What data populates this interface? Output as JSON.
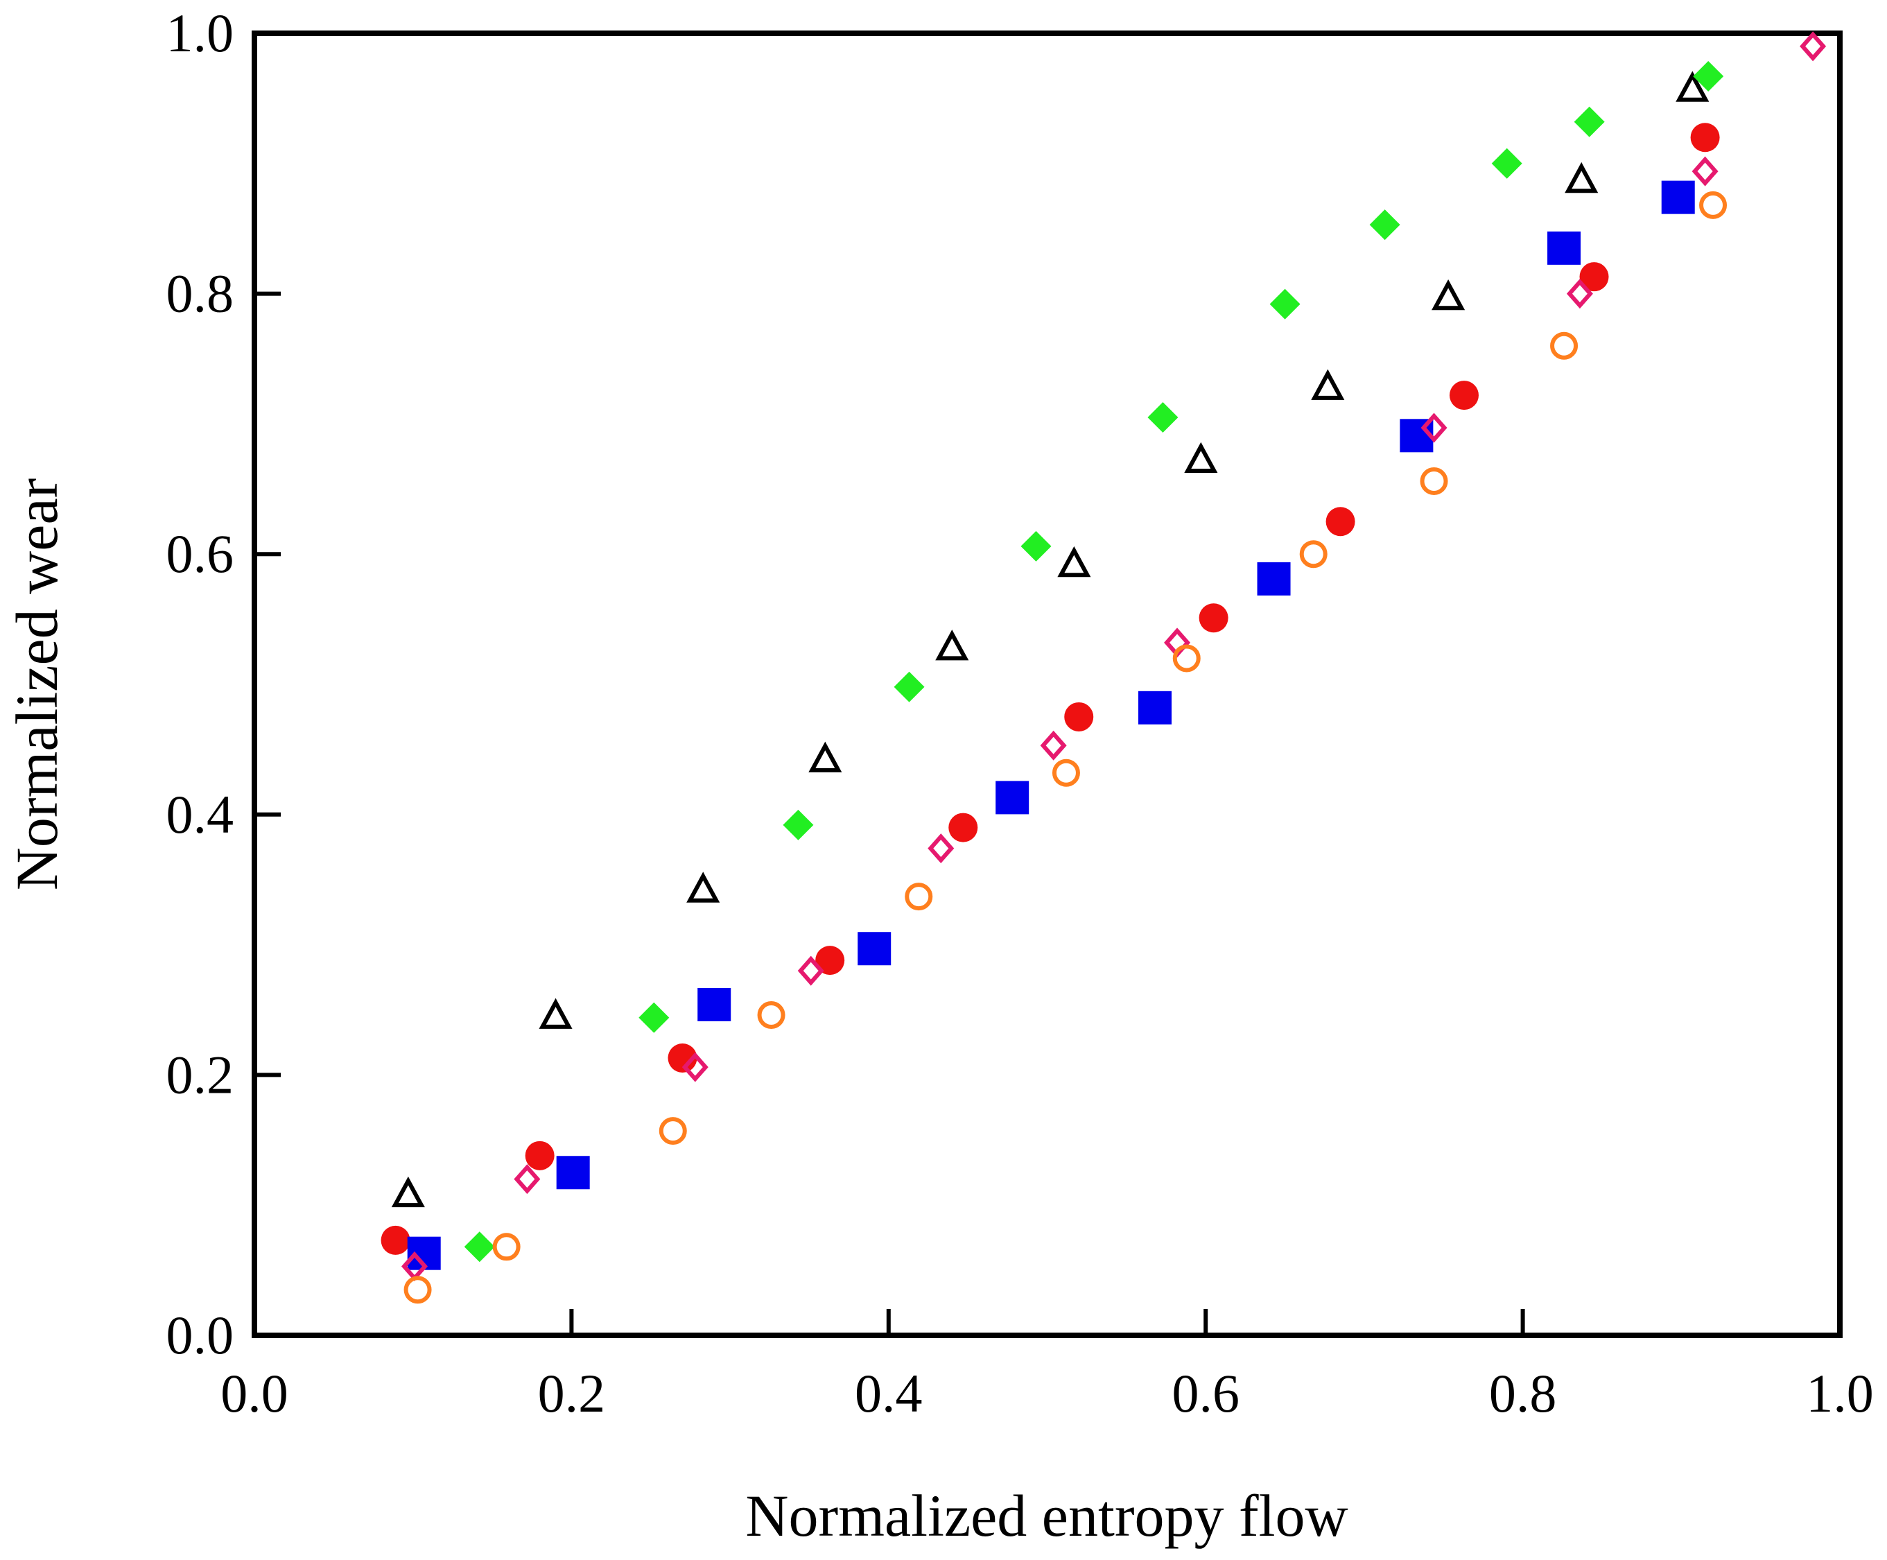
{
  "chart_data": {
    "type": "scatter",
    "title": "",
    "xlabel": "Normalized entropy flow",
    "ylabel": "Normalized wear",
    "xlim": [
      0.0,
      1.0
    ],
    "ylim": [
      0.0,
      1.0
    ],
    "xticks": [
      "0.0",
      "0.2",
      "0.4",
      "0.6",
      "0.8",
      "1.0"
    ],
    "yticks": [
      "0.0",
      "0.2",
      "0.4",
      "0.6",
      "0.8",
      "1.0"
    ],
    "grid": false,
    "legend": "none",
    "series": [
      {
        "name": "open-triangle",
        "marker": "triangle-open",
        "color": "#000000",
        "x": [
          0.097,
          0.19,
          0.283,
          0.36,
          0.44,
          0.517,
          0.597,
          0.677,
          0.753,
          0.837,
          0.907
        ],
        "y": [
          0.108,
          0.245,
          0.342,
          0.442,
          0.528,
          0.592,
          0.672,
          0.728,
          0.797,
          0.887,
          0.957
        ]
      },
      {
        "name": "filled-diamond",
        "marker": "diamond-filled",
        "color": "#22ee22",
        "x": [
          0.142,
          0.252,
          0.343,
          0.413,
          0.493,
          0.573,
          0.65,
          0.713,
          0.79,
          0.842,
          0.917
        ],
        "y": [
          0.068,
          0.244,
          0.392,
          0.498,
          0.606,
          0.705,
          0.792,
          0.853,
          0.9,
          0.932,
          0.967
        ]
      },
      {
        "name": "filled-circle",
        "marker": "circle-filled",
        "color": "#ee1111",
        "x": [
          0.089,
          0.18,
          0.27,
          0.363,
          0.447,
          0.52,
          0.605,
          0.685,
          0.763,
          0.845,
          0.915
        ],
        "y": [
          0.073,
          0.138,
          0.213,
          0.288,
          0.39,
          0.475,
          0.551,
          0.625,
          0.722,
          0.813,
          0.92
        ]
      },
      {
        "name": "filled-square",
        "marker": "square-filled",
        "color": "#0000ee",
        "x": [
          0.107,
          0.201,
          0.29,
          0.391,
          0.478,
          0.568,
          0.643,
          0.733,
          0.826,
          0.898
        ],
        "y": [
          0.063,
          0.125,
          0.254,
          0.297,
          0.413,
          0.482,
          0.581,
          0.691,
          0.835,
          0.874
        ]
      },
      {
        "name": "open-diamond",
        "marker": "diamond-open",
        "color": "#e6196e",
        "x": [
          0.101,
          0.172,
          0.278,
          0.351,
          0.433,
          0.504,
          0.582,
          0.744,
          0.836,
          0.915,
          0.983
        ],
        "y": [
          0.053,
          0.12,
          0.206,
          0.28,
          0.374,
          0.453,
          0.532,
          0.697,
          0.8,
          0.894,
          0.99
        ]
      },
      {
        "name": "open-circle",
        "marker": "circle-open",
        "color": "#ff7f1e",
        "x": [
          0.103,
          0.159,
          0.264,
          0.326,
          0.419,
          0.512,
          0.588,
          0.668,
          0.744,
          0.826,
          0.92
        ],
        "y": [
          0.035,
          0.068,
          0.157,
          0.246,
          0.337,
          0.432,
          0.52,
          0.6,
          0.656,
          0.76,
          0.868
        ]
      }
    ]
  }
}
